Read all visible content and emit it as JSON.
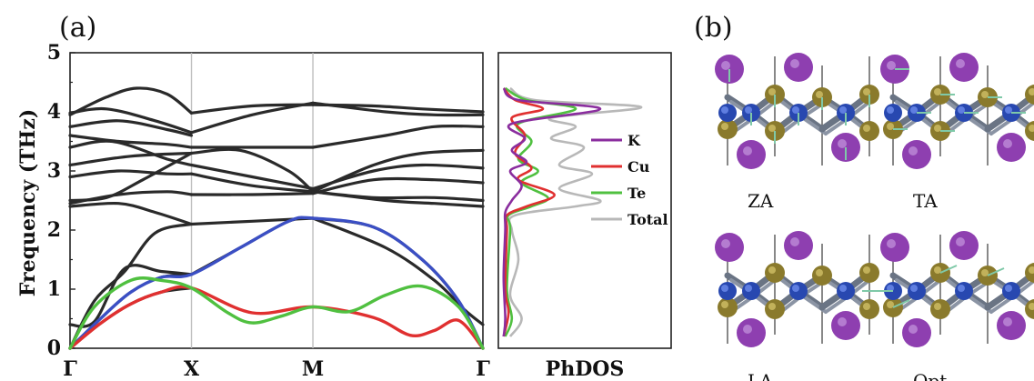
{
  "panels": {
    "a": "(a)",
    "b": "(b)"
  },
  "chart_data": [
    {
      "type": "line",
      "ylabel": "Frequency (THz)",
      "ylim": [
        0,
        5
      ],
      "yticks": [
        0,
        1,
        2,
        3,
        4,
        5
      ],
      "xticks": [
        "Γ",
        "X",
        "M",
        "Γ"
      ],
      "xtick_positions": [
        0,
        1,
        2,
        3.4
      ],
      "xlim": [
        0,
        3.4
      ],
      "grid": false,
      "series": [
        {
          "color": "#2a2a2a",
          "points": [
            [
              0,
              0
            ],
            [
              0.25,
              0.5
            ],
            [
              0.5,
              0.95
            ],
            [
              0.75,
              1.2
            ],
            [
              1,
              1.25
            ]
          ]
        },
        {
          "color": "#2a2a2a",
          "points": [
            [
              0,
              0
            ],
            [
              0.25,
              0.42
            ],
            [
              0.5,
              0.75
            ],
            [
              0.75,
              0.95
            ],
            [
              1,
              1.02
            ]
          ]
        },
        {
          "color": "#2a2a2a",
          "points": [
            [
              0,
              0
            ],
            [
              0.2,
              0.8
            ],
            [
              0.45,
              1.3
            ],
            [
              0.7,
              1.95
            ],
            [
              1,
              2.1
            ]
          ]
        },
        {
          "color": "#2a2a2a",
          "points": [
            [
              0,
              0.4
            ],
            [
              0.2,
              0.45
            ],
            [
              0.45,
              1.35
            ],
            [
              0.75,
              1.3
            ],
            [
              1,
              1.25
            ]
          ]
        },
        {
          "color": "#2a2a2a",
          "points": [
            [
              1,
              1.25
            ],
            [
              1.4,
              1.7
            ],
            [
              1.8,
              2.15
            ],
            [
              2,
              2.2
            ]
          ]
        },
        {
          "color": "#2a2a2a",
          "points": [
            [
              1,
              2.1
            ],
            [
              1.5,
              2.15
            ],
            [
              2,
              2.2
            ]
          ]
        },
        {
          "color": "#2a2a2a",
          "points": [
            [
              2,
              2.2
            ],
            [
              2.5,
              2.05
            ],
            [
              2.9,
              1.5
            ],
            [
              3.2,
              0.8
            ],
            [
              3.4,
              0
            ]
          ]
        },
        {
          "color": "#2a2a2a",
          "points": [
            [
              2,
              2.2
            ],
            [
              2.6,
              1.7
            ],
            [
              3.0,
              1.15
            ],
            [
              3.25,
              0.65
            ],
            [
              3.4,
              0.4
            ]
          ]
        },
        {
          "color": "#2a2a2a",
          "points": [
            [
              0,
              2.4
            ],
            [
              0.4,
              2.45
            ],
            [
              0.7,
              2.3
            ],
            [
              1,
              2.1
            ]
          ]
        },
        {
          "color": "#2a2a2a",
          "points": [
            [
              0,
              2.45
            ],
            [
              0.4,
              2.6
            ],
            [
              0.8,
              2.65
            ],
            [
              1,
              2.6
            ]
          ]
        },
        {
          "color": "#2a2a2a",
          "points": [
            [
              0,
              2.5
            ],
            [
              0.3,
              2.55
            ],
            [
              0.6,
              2.85
            ],
            [
              1,
              3.3
            ]
          ]
        },
        {
          "color": "#2a2a2a",
          "points": [
            [
              0,
              2.9
            ],
            [
              0.4,
              3.0
            ],
            [
              0.8,
              2.95
            ],
            [
              1,
              2.95
            ]
          ]
        },
        {
          "color": "#2a2a2a",
          "points": [
            [
              0,
              3.1
            ],
            [
              0.5,
              3.25
            ],
            [
              1,
              3.3
            ]
          ]
        },
        {
          "color": "#2a2a2a",
          "points": [
            [
              0,
              3.4
            ],
            [
              0.35,
              3.5
            ],
            [
              0.8,
              3.2
            ],
            [
              1,
              3.1
            ]
          ]
        },
        {
          "color": "#2a2a2a",
          "points": [
            [
              0,
              3.6
            ],
            [
              0.4,
              3.5
            ],
            [
              0.8,
              3.45
            ],
            [
              1,
              3.4
            ]
          ]
        },
        {
          "color": "#2a2a2a",
          "points": [
            [
              0,
              3.75
            ],
            [
              0.4,
              3.85
            ],
            [
              0.8,
              3.7
            ],
            [
              1,
              3.6
            ]
          ]
        },
        {
          "color": "#2a2a2a",
          "points": [
            [
              0,
              3.98
            ],
            [
              0.3,
              4.05
            ],
            [
              0.7,
              3.85
            ],
            [
              1,
              3.65
            ]
          ]
        },
        {
          "color": "#2a2a2a",
          "points": [
            [
              0,
              3.95
            ],
            [
              0.3,
              4.25
            ],
            [
              0.55,
              4.4
            ],
            [
              0.8,
              4.3
            ],
            [
              1,
              3.98
            ]
          ]
        },
        {
          "color": "#2a2a2a",
          "points": [
            [
              1,
              3.98
            ],
            [
              1.5,
              4.1
            ],
            [
              2,
              4.12
            ]
          ]
        },
        {
          "color": "#2a2a2a",
          "points": [
            [
              1,
              3.65
            ],
            [
              1.5,
              3.95
            ],
            [
              2,
              4.15
            ]
          ]
        },
        {
          "color": "#2a2a2a",
          "points": [
            [
              1,
              3.4
            ],
            [
              1.5,
              3.4
            ],
            [
              2,
              3.4
            ]
          ]
        },
        {
          "color": "#2a2a2a",
          "points": [
            [
              1,
              3.3
            ],
            [
              1.4,
              3.35
            ],
            [
              1.8,
              3.0
            ],
            [
              2,
              2.65
            ]
          ]
        },
        {
          "color": "#2a2a2a",
          "points": [
            [
              1,
              3.1
            ],
            [
              1.5,
              2.9
            ],
            [
              2,
              2.7
            ]
          ]
        },
        {
          "color": "#2a2a2a",
          "points": [
            [
              1,
              2.95
            ],
            [
              1.5,
              2.75
            ],
            [
              2,
              2.65
            ]
          ]
        },
        {
          "color": "#2a2a2a",
          "points": [
            [
              1,
              2.6
            ],
            [
              1.5,
              2.6
            ],
            [
              2,
              2.62
            ]
          ]
        },
        {
          "color": "#2a2a2a",
          "points": [
            [
              2,
              4.12
            ],
            [
              2.5,
              4.1
            ],
            [
              2.9,
              4.05
            ],
            [
              3.4,
              4.0
            ]
          ]
        },
        {
          "color": "#2a2a2a",
          "points": [
            [
              2,
              4.15
            ],
            [
              2.6,
              4.0
            ],
            [
              3.0,
              3.95
            ],
            [
              3.4,
              3.95
            ]
          ]
        },
        {
          "color": "#2a2a2a",
          "points": [
            [
              2,
              3.4
            ],
            [
              2.6,
              3.6
            ],
            [
              3.0,
              3.75
            ],
            [
              3.4,
              3.75
            ]
          ]
        },
        {
          "color": "#2a2a2a",
          "points": [
            [
              2,
              2.65
            ],
            [
              2.5,
              3.1
            ],
            [
              2.9,
              3.3
            ],
            [
              3.4,
              3.35
            ]
          ]
        },
        {
          "color": "#2a2a2a",
          "points": [
            [
              2,
              2.7
            ],
            [
              2.5,
              3.0
            ],
            [
              2.9,
              3.1
            ],
            [
              3.4,
              3.05
            ]
          ]
        },
        {
          "color": "#2a2a2a",
          "points": [
            [
              2,
              2.65
            ],
            [
              2.6,
              2.5
            ],
            [
              3.0,
              2.45
            ],
            [
              3.4,
              2.4
            ]
          ]
        },
        {
          "color": "#2a2a2a",
          "points": [
            [
              2,
              2.62
            ],
            [
              2.5,
              2.85
            ],
            [
              3.0,
              2.85
            ],
            [
              3.4,
              2.8
            ]
          ]
        },
        {
          "color": "#2a2a2a",
          "points": [
            [
              2,
              2.65
            ],
            [
              2.5,
              2.55
            ],
            [
              3.0,
              2.55
            ],
            [
              3.4,
              2.5
            ]
          ]
        },
        {
          "color": "#3b4fc4",
          "points": [
            [
              0,
              0
            ],
            [
              0.25,
              0.5
            ],
            [
              0.5,
              0.95
            ],
            [
              0.75,
              1.2
            ],
            [
              1,
              1.25
            ],
            [
              1.4,
              1.7
            ],
            [
              1.8,
              2.15
            ],
            [
              2,
              2.2
            ],
            [
              2.5,
              2.05
            ],
            [
              2.9,
              1.5
            ],
            [
              3.2,
              0.8
            ],
            [
              3.4,
              0
            ]
          ]
        },
        {
          "color": "#e03030",
          "points": [
            [
              0,
              0
            ],
            [
              0.25,
              0.42
            ],
            [
              0.5,
              0.75
            ],
            [
              0.75,
              0.95
            ],
            [
              1,
              1.02
            ],
            [
              1.5,
              0.6
            ],
            [
              2,
              0.7
            ],
            [
              2.5,
              0.52
            ],
            [
              2.8,
              0.22
            ],
            [
              3.0,
              0.3
            ],
            [
              3.2,
              0.47
            ],
            [
              3.4,
              0
            ]
          ]
        },
        {
          "color": "#50c040",
          "points": [
            [
              0,
              0
            ],
            [
              0.2,
              0.7
            ],
            [
              0.5,
              1.15
            ],
            [
              0.75,
              1.15
            ],
            [
              1,
              1.02
            ],
            [
              1.3,
              0.6
            ],
            [
              1.5,
              0.43
            ],
            [
              1.75,
              0.55
            ],
            [
              2,
              0.7
            ],
            [
              2.3,
              0.62
            ],
            [
              2.6,
              0.9
            ],
            [
              2.9,
              1.05
            ],
            [
              3.2,
              0.7
            ],
            [
              3.4,
              0
            ]
          ]
        }
      ]
    },
    {
      "type": "line",
      "xlabel": "PhDOS",
      "ylim": [
        0,
        5
      ],
      "legend": [
        {
          "name": "K",
          "color": "#8a2d9e"
        },
        {
          "name": "Cu",
          "color": "#e03030"
        },
        {
          "name": "Te",
          "color": "#50c040"
        },
        {
          "name": "Total",
          "color": "#b8b8b8"
        }
      ],
      "series": [
        {
          "name": "Total",
          "color": "#b8b8b8",
          "points": [
            [
              0.05,
              0.2
            ],
            [
              0.12,
              0.5
            ],
            [
              0.05,
              0.9
            ],
            [
              0.1,
              1.5
            ],
            [
              0.06,
              2.0
            ],
            [
              0.08,
              2.25
            ],
            [
              0.45,
              2.4
            ],
            [
              0.6,
              2.5
            ],
            [
              0.35,
              2.7
            ],
            [
              0.55,
              2.95
            ],
            [
              0.35,
              3.1
            ],
            [
              0.5,
              3.4
            ],
            [
              0.3,
              3.55
            ],
            [
              0.45,
              3.75
            ],
            [
              0.3,
              3.9
            ],
            [
              0.85,
              4.08
            ],
            [
              0.2,
              4.2
            ],
            [
              0.05,
              4.4
            ]
          ]
        },
        {
          "name": "Te",
          "color": "#50c040",
          "points": [
            [
              0.02,
              0.2
            ],
            [
              0.06,
              0.5
            ],
            [
              0.03,
              1.0
            ],
            [
              0.05,
              2.0
            ],
            [
              0.04,
              2.25
            ],
            [
              0.18,
              2.4
            ],
            [
              0.28,
              2.55
            ],
            [
              0.12,
              2.8
            ],
            [
              0.22,
              3.0
            ],
            [
              0.1,
              3.2
            ],
            [
              0.18,
              3.5
            ],
            [
              0.1,
              3.8
            ],
            [
              0.45,
              4.05
            ],
            [
              0.15,
              4.2
            ],
            [
              0.02,
              4.4
            ]
          ]
        },
        {
          "name": "Cu",
          "color": "#e03030",
          "points": [
            [
              0.01,
              0.2
            ],
            [
              0.04,
              0.6
            ],
            [
              0.02,
              1.0
            ],
            [
              0.03,
              2.0
            ],
            [
              0.03,
              2.25
            ],
            [
              0.15,
              2.4
            ],
            [
              0.32,
              2.6
            ],
            [
              0.1,
              2.85
            ],
            [
              0.18,
              3.05
            ],
            [
              0.08,
              3.3
            ],
            [
              0.14,
              3.6
            ],
            [
              0.06,
              3.9
            ],
            [
              0.25,
              4.05
            ],
            [
              0.08,
              4.2
            ],
            [
              0.01,
              4.4
            ]
          ]
        },
        {
          "name": "K",
          "color": "#8a2d9e",
          "points": [
            [
              0.01,
              0.2
            ],
            [
              0.02,
              0.5
            ],
            [
              0.01,
              1.2
            ],
            [
              0.02,
              2.0
            ],
            [
              0.02,
              2.3
            ],
            [
              0.06,
              2.5
            ],
            [
              0.12,
              2.75
            ],
            [
              0.05,
              3.0
            ],
            [
              0.15,
              3.15
            ],
            [
              0.06,
              3.35
            ],
            [
              0.14,
              3.55
            ],
            [
              0.06,
              3.8
            ],
            [
              0.6,
              4.05
            ],
            [
              0.1,
              4.2
            ],
            [
              0.01,
              4.4
            ]
          ]
        }
      ]
    }
  ],
  "modes": {
    "za": "ZA",
    "ta": "TA",
    "la": "LA",
    "opt": "Opt."
  }
}
